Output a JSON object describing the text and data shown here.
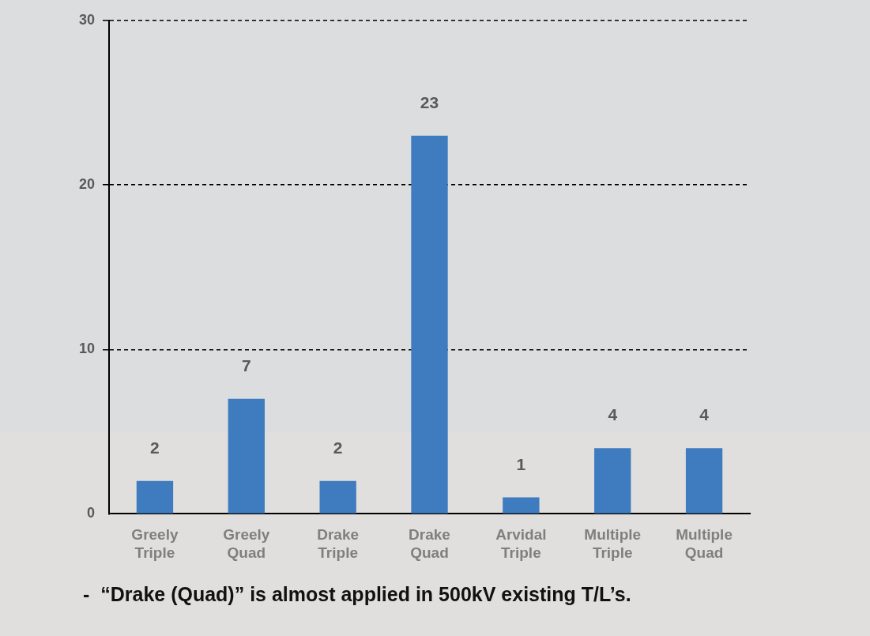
{
  "chart_data": {
    "type": "bar",
    "categories": [
      "Greely Triple",
      "Greely Quad",
      "Drake Triple",
      "Drake Quad",
      "Arvidal Triple",
      "Multiple Triple",
      "Multiple Quad"
    ],
    "values": [
      2,
      7,
      2,
      23,
      1,
      4,
      4
    ],
    "color": "#3f7bbf",
    "ylim": [
      0,
      30
    ],
    "yticks": [
      0,
      10,
      20,
      30
    ],
    "grid": "y",
    "legend": false,
    "data_labels": true,
    "annotations": [
      "-  “Drake (Quad)” is almost applied in 500kV existing T/L’s."
    ]
  }
}
